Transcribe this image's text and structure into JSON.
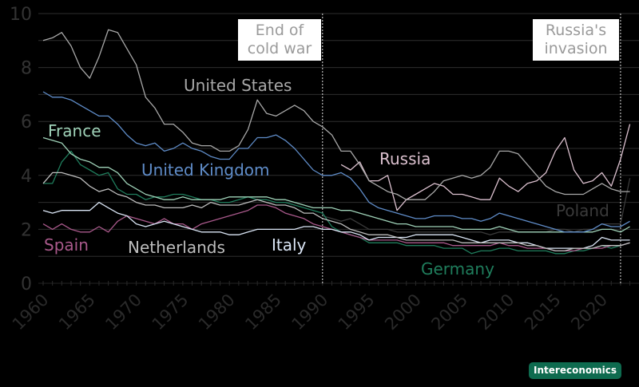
{
  "chart_data": {
    "type": "line",
    "title": "",
    "xlabel": "",
    "ylabel": "",
    "xlim": [
      1960,
      2023
    ],
    "ylim": [
      0,
      10
    ],
    "y_ticks": [
      "0",
      "2",
      "4",
      "6",
      "8",
      "10"
    ],
    "x_ticks": [
      "1960",
      "1965",
      "1970",
      "1975",
      "1980",
      "1985",
      "1990",
      "1995",
      "2000",
      "2005",
      "2010",
      "2015",
      "2020"
    ],
    "grid": true,
    "annotations": [
      {
        "year": 1990,
        "text_line1": "End of",
        "text_line2": "cold war"
      },
      {
        "year": 2022,
        "text_line1": "Russia's",
        "text_line2": "invasion"
      }
    ],
    "series": [
      {
        "name": "United States",
        "color": "#a8a8a8",
        "start": 1960,
        "values": [
          9.0,
          9.1,
          9.3,
          8.8,
          8.0,
          7.6,
          8.4,
          9.4,
          9.3,
          8.7,
          8.1,
          6.9,
          6.5,
          5.9,
          5.9,
          5.6,
          5.2,
          5.1,
          5.1,
          4.9,
          4.9,
          5.1,
          5.7,
          6.8,
          6.3,
          6.2,
          6.4,
          6.6,
          6.4,
          6.0,
          5.8,
          5.5,
          4.9,
          4.9,
          4.4,
          3.8,
          3.6,
          3.4,
          3.3,
          3.1,
          3.1,
          3.1,
          3.4,
          3.8,
          3.9,
          4.0,
          3.9,
          4.0,
          4.3,
          4.9,
          4.9,
          4.8,
          4.4,
          4.0,
          3.6,
          3.4,
          3.3,
          3.3,
          3.3,
          3.5,
          3.7,
          3.5,
          3.4,
          3.4
        ]
      },
      {
        "name": "United Kingdom",
        "color": "#5f8cc8",
        "start": 1960,
        "values": [
          7.1,
          6.9,
          6.9,
          6.8,
          6.6,
          6.4,
          6.2,
          6.2,
          5.9,
          5.5,
          5.2,
          5.1,
          5.2,
          4.9,
          5.0,
          5.2,
          5.0,
          4.9,
          4.7,
          4.6,
          4.6,
          5.0,
          5.0,
          5.4,
          5.4,
          5.5,
          5.3,
          5.0,
          4.6,
          4.2,
          4.0,
          4.0,
          4.1,
          3.9,
          3.5,
          3.0,
          2.8,
          2.7,
          2.6,
          2.5,
          2.4,
          2.4,
          2.5,
          2.5,
          2.5,
          2.4,
          2.4,
          2.3,
          2.4,
          2.6,
          2.5,
          2.4,
          2.3,
          2.2,
          2.1,
          2.0,
          1.9,
          1.9,
          1.9,
          2.0,
          2.2,
          2.1,
          2.1,
          2.3
        ]
      },
      {
        "name": "France",
        "color": "#9fd2b8",
        "start": 1960,
        "values": [
          5.4,
          5.3,
          5.2,
          4.8,
          4.6,
          4.5,
          4.3,
          4.3,
          4.1,
          3.7,
          3.5,
          3.3,
          3.2,
          3.1,
          3.1,
          3.2,
          3.1,
          3.1,
          3.1,
          3.1,
          3.2,
          3.2,
          3.2,
          3.2,
          3.2,
          3.1,
          3.1,
          3.0,
          2.9,
          2.8,
          2.8,
          2.8,
          2.7,
          2.7,
          2.6,
          2.5,
          2.4,
          2.3,
          2.2,
          2.2,
          2.1,
          2.1,
          2.1,
          2.1,
          2.1,
          2.0,
          2.0,
          2.0,
          2.0,
          2.1,
          2.0,
          1.9,
          1.9,
          1.9,
          1.9,
          1.9,
          1.9,
          1.9,
          1.9,
          1.9,
          2.0,
          2.0,
          1.9,
          2.1
        ]
      },
      {
        "name": "Germany",
        "color": "#1f7d5c",
        "start": 1960,
        "values": [
          3.7,
          3.7,
          4.5,
          4.9,
          4.4,
          4.2,
          4.0,
          4.1,
          3.5,
          3.3,
          3.3,
          3.1,
          3.2,
          3.2,
          3.3,
          3.3,
          3.2,
          3.1,
          3.1,
          3.0,
          3.0,
          3.1,
          3.2,
          3.1,
          3.1,
          3.0,
          3.0,
          2.9,
          2.8,
          2.7,
          2.6,
          2.1,
          1.9,
          1.8,
          1.7,
          1.5,
          1.5,
          1.5,
          1.5,
          1.4,
          1.4,
          1.4,
          1.4,
          1.3,
          1.3,
          1.3,
          1.1,
          1.2,
          1.2,
          1.3,
          1.3,
          1.2,
          1.2,
          1.2,
          1.2,
          1.1,
          1.1,
          1.2,
          1.2,
          1.3,
          1.4,
          1.3,
          1.4,
          1.5
        ]
      },
      {
        "name": "Netherlands",
        "color": "#bdbdbd",
        "start": 1960,
        "values": [
          3.7,
          4.1,
          4.1,
          4.0,
          3.9,
          3.6,
          3.4,
          3.5,
          3.3,
          3.2,
          3.0,
          2.9,
          2.9,
          2.8,
          2.8,
          2.8,
          2.9,
          2.8,
          3.0,
          2.9,
          2.9,
          2.9,
          3.0,
          3.1,
          3.0,
          2.9,
          2.9,
          2.8,
          2.6,
          2.6,
          2.4,
          2.3,
          2.2,
          2.0,
          1.9,
          1.8,
          1.8,
          1.8,
          1.7,
          1.6,
          1.6,
          1.6,
          1.6,
          1.6,
          1.6,
          1.5,
          1.5,
          1.5,
          1.5,
          1.5,
          1.5,
          1.5,
          1.4,
          1.4,
          1.3,
          1.2,
          1.2,
          1.3,
          1.3,
          1.3,
          1.4,
          1.4,
          1.4,
          1.5
        ]
      },
      {
        "name": "Italy",
        "color": "#dbe6f6",
        "start": 1960,
        "values": [
          2.7,
          2.6,
          2.7,
          2.7,
          2.7,
          2.7,
          3.0,
          2.8,
          2.6,
          2.5,
          2.2,
          2.1,
          2.2,
          2.3,
          2.2,
          2.1,
          2.0,
          1.9,
          1.9,
          1.9,
          1.8,
          1.8,
          1.9,
          2.0,
          2.0,
          2.0,
          2.0,
          2.0,
          2.1,
          2.1,
          2.0,
          2.0,
          1.9,
          1.9,
          1.8,
          1.6,
          1.7,
          1.7,
          1.7,
          1.7,
          1.8,
          1.8,
          1.8,
          1.8,
          1.8,
          1.7,
          1.6,
          1.5,
          1.6,
          1.6,
          1.6,
          1.5,
          1.5,
          1.4,
          1.3,
          1.3,
          1.3,
          1.3,
          1.3,
          1.4,
          1.7,
          1.6,
          1.6,
          1.6
        ]
      },
      {
        "name": "Spain",
        "color": "#a9598b",
        "start": 1960,
        "values": [
          2.2,
          2.0,
          2.2,
          2.0,
          1.9,
          1.9,
          2.1,
          1.9,
          2.3,
          2.5,
          2.4,
          2.3,
          2.2,
          2.4,
          2.2,
          2.2,
          2.0,
          2.2,
          2.3,
          2.4,
          2.5,
          2.6,
          2.7,
          2.9,
          2.9,
          2.8,
          2.6,
          2.5,
          2.4,
          2.2,
          2.1,
          2.0,
          1.9,
          1.8,
          1.7,
          1.6,
          1.6,
          1.6,
          1.6,
          1.5,
          1.5,
          1.5,
          1.5,
          1.5,
          1.4,
          1.4,
          1.4,
          1.4,
          1.4,
          1.5,
          1.4,
          1.4,
          1.3,
          1.3,
          1.3,
          1.2,
          1.2,
          1.2,
          1.3,
          1.3,
          1.3,
          1.4,
          1.4,
          1.5
        ]
      },
      {
        "name": "Russia",
        "color": "#dcc1cf",
        "start": 1992,
        "values": [
          4.4,
          4.2,
          4.5,
          3.8,
          3.8,
          4.0,
          2.7,
          3.1,
          3.3,
          3.5,
          3.7,
          3.6,
          3.3,
          3.3,
          3.2,
          3.1,
          3.1,
          3.9,
          3.6,
          3.4,
          3.7,
          3.8,
          4.1,
          4.9,
          5.4,
          4.2,
          3.7,
          3.8,
          4.1,
          3.6,
          4.6,
          5.9
        ]
      },
      {
        "name": "Poland",
        "color": "#3a3a3a",
        "start": 1990,
        "values": [
          2.5,
          2.4,
          2.3,
          2.4,
          2.2,
          2.0,
          2.0,
          2.0,
          1.9,
          1.9,
          1.9,
          1.9,
          1.9,
          1.9,
          1.9,
          1.9,
          1.9,
          1.9,
          1.8,
          1.9,
          1.9,
          1.9,
          1.9,
          1.9,
          1.9,
          2.0,
          2.0,
          1.9,
          2.0,
          2.0,
          2.2,
          2.2,
          2.2,
          3.9
        ]
      }
    ]
  },
  "brand": "Intereconomics"
}
